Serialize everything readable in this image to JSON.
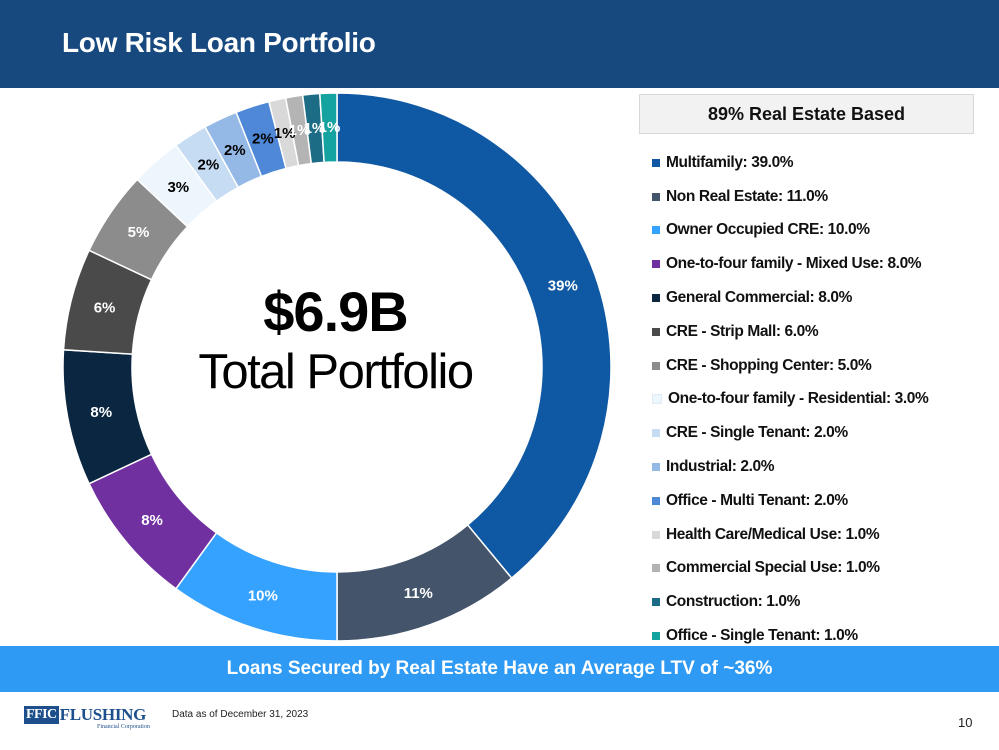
{
  "header": {
    "title": "Low Risk Loan Portfolio"
  },
  "legend": {
    "heading": "89% Real Estate Based"
  },
  "center": {
    "value": "$6.9B",
    "label": "Total Portfolio"
  },
  "banner": {
    "text": "Loans Secured by Real Estate Have an Average LTV of ~36%"
  },
  "footer": {
    "logo_mark": "FFIC",
    "logo_word": "FLUSHING",
    "logo_sub": "Financial Corporation",
    "note": "Data as of December 31, 2023",
    "page_number": "10"
  },
  "chart_data": {
    "type": "donut",
    "title": "",
    "total_label": "$6.9B Total Portfolio",
    "unit": "%",
    "legend_position": "right",
    "series": [
      {
        "name": "Multifamily",
        "value": 39.0,
        "label": "39%",
        "legend": "Multifamily: 39.0%",
        "color": "#0f58a3",
        "label_color": "#ffffff"
      },
      {
        "name": "Non Real Estate",
        "value": 11.0,
        "label": "11%",
        "legend": "Non Real Estate: 11.0%",
        "color": "#44546a",
        "label_color": "#ffffff"
      },
      {
        "name": "Owner Occupied CRE",
        "value": 10.0,
        "label": "10%",
        "legend": "Owner Occupied CRE: 10.0%",
        "color": "#36a2ff",
        "label_color": "#ffffff"
      },
      {
        "name": "One-to-four family - Mixed Use",
        "value": 8.0,
        "label": "8%",
        "legend": "One-to-four family - Mixed Use: 8.0%",
        "color": "#7030a0",
        "label_color": "#ffffff"
      },
      {
        "name": "General Commercial",
        "value": 8.0,
        "label": "8%",
        "legend": "General Commercial: 8.0%",
        "color": "#0b2640",
        "label_color": "#ffffff"
      },
      {
        "name": "CRE - Strip Mall",
        "value": 6.0,
        "label": "6%",
        "legend": "CRE - Strip Mall: 6.0%",
        "color": "#4a4a4a",
        "label_color": "#ffffff"
      },
      {
        "name": "CRE - Shopping Center",
        "value": 5.0,
        "label": "5%",
        "legend": "CRE - Shopping Center: 5.0%",
        "color": "#8c8c8c",
        "label_color": "#ffffff"
      },
      {
        "name": "One-to-four family - Residential",
        "value": 3.0,
        "label": "3%",
        "legend": "One-to-four family - Residential: 3.0%",
        "color": "#eef6fd",
        "label_color": "#000000"
      },
      {
        "name": "CRE - Single Tenant",
        "value": 2.0,
        "label": "2%",
        "legend": "CRE - Single Tenant: 2.0%",
        "color": "#c6dcf3",
        "label_color": "#000000"
      },
      {
        "name": "Industrial",
        "value": 2.0,
        "label": "2%",
        "legend": "Industrial: 2.0%",
        "color": "#94b9e6",
        "label_color": "#000000"
      },
      {
        "name": "Office - Multi Tenant",
        "value": 2.0,
        "label": "2%",
        "legend": "Office - Multi Tenant: 2.0%",
        "color": "#4e88d6",
        "label_color": "#000000"
      },
      {
        "name": "Health Care/Medical Use",
        "value": 1.0,
        "label": "1%",
        "legend": "Health Care/Medical Use: 1.0%",
        "color": "#d9d9d9",
        "label_color": "#000000"
      },
      {
        "name": "Commercial Special Use",
        "value": 1.0,
        "label": "1%",
        "legend": "Commercial Special Use: 1.0%",
        "color": "#b4b4b4",
        "label_color": "#ffffff"
      },
      {
        "name": "Construction",
        "value": 1.0,
        "label": "1%",
        "legend": "Construction: 1.0%",
        "color": "#1c6c85",
        "label_color": "#ffffff"
      },
      {
        "name": "Office - Single Tenant",
        "value": 1.0,
        "label": "1%",
        "legend": "Office - Single Tenant: 1.0%",
        "color": "#15a3a0",
        "label_color": "#ffffff"
      }
    ]
  }
}
